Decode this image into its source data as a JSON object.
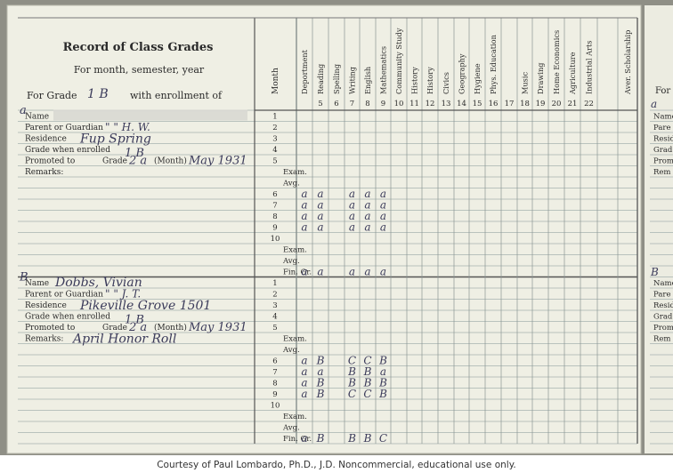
{
  "card": {
    "title": "Record of Class Grades",
    "subtitle": "For month, semester, year",
    "grade_line": {
      "prefix": "For Grade",
      "grade": "1 B",
      "suffix": "with enrollment of"
    },
    "month_header": "Month",
    "subjects": [
      {
        "num": "",
        "label": "Deportment"
      },
      {
        "num": "5",
        "label": "Reading"
      },
      {
        "num": "6",
        "label": "Spelling"
      },
      {
        "num": "7",
        "label": "Writing"
      },
      {
        "num": "8",
        "label": "English"
      },
      {
        "num": "9",
        "label": "Mathematics"
      },
      {
        "num": "10",
        "label": "Community Study"
      },
      {
        "num": "11",
        "label": "History"
      },
      {
        "num": "12",
        "label": "History"
      },
      {
        "num": "13",
        "label": "Civics"
      },
      {
        "num": "14",
        "label": "Geography"
      },
      {
        "num": "15",
        "label": "Hygiene"
      },
      {
        "num": "16",
        "label": "Phys. Education"
      },
      {
        "num": "17",
        "label": ""
      },
      {
        "num": "18",
        "label": "Music"
      },
      {
        "num": "19",
        "label": "Drawing"
      },
      {
        "num": "20",
        "label": "Home Economics"
      },
      {
        "num": "21",
        "label": "Agriculture"
      },
      {
        "num": "22",
        "label": "Industrial Arts"
      },
      {
        "num": "",
        "label": ""
      },
      {
        "num": "",
        "label": "Aver. Scholarship"
      }
    ],
    "month_labels": [
      "1",
      "2",
      "3",
      "4",
      "5",
      "Exam.",
      "Avg.",
      "6",
      "7",
      "8",
      "9",
      "10",
      "Exam.",
      "Avg.",
      "Fin. Gr."
    ],
    "field_labels": {
      "name": "Name",
      "parent": "Parent or Guardian",
      "residence": "Residence",
      "grade_enrolled": "Grade when enrolled",
      "promoted": "Promoted to",
      "grade_word": "Grade",
      "month_word": "(Month)",
      "remarks": "Remarks:"
    },
    "records": [
      {
        "letter": "a",
        "name": "",
        "parent": "\"  \"   H. W.",
        "residence": "Fup Spring",
        "grade_enrolled": "1 B",
        "promoted_grade": "2 a",
        "promoted_month": "May 1931",
        "remarks": "",
        "grades": [
          [
            "a",
            "a",
            "",
            "a",
            "a",
            "a"
          ],
          [
            "a",
            "a",
            "",
            "a",
            "a",
            "a"
          ],
          [
            "a",
            "a",
            "",
            "a",
            "a",
            "a"
          ],
          [
            "a",
            "a",
            "",
            "a",
            "a",
            "a"
          ]
        ],
        "final": [
          "a",
          "a",
          "",
          "a",
          "a",
          "a"
        ]
      },
      {
        "letter": "B",
        "name": "Dobbs, Vivian",
        "parent": "\"  \"   J. T.",
        "residence": "Pikeville Grove 1501",
        "grade_enrolled": "1 B",
        "promoted_grade": "2 a",
        "promoted_month": "May 1931",
        "remarks": "April Honor Roll",
        "grades": [
          [
            "a",
            "B",
            "",
            "C",
            "C",
            "B"
          ],
          [
            "a",
            "a",
            "",
            "B",
            "B",
            "a"
          ],
          [
            "a",
            "B",
            "",
            "B",
            "B",
            "B"
          ],
          [
            "a",
            "B",
            "",
            "C",
            "C",
            "B"
          ]
        ],
        "final": [
          "a",
          "B",
          "",
          "B",
          "B",
          "C"
        ]
      }
    ],
    "right_card": {
      "for_label": "For",
      "letters": [
        "a",
        "B"
      ],
      "labels": [
        "Name",
        "Pare",
        "Resid",
        "Grad",
        "Prom",
        "Rem"
      ]
    }
  },
  "credit": "Courtesy of Paul Lombardo, Ph.D., J.D.  Noncommercial, educational use only."
}
